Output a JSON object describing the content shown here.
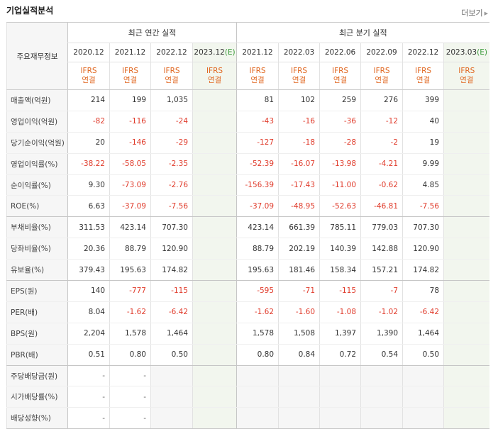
{
  "title": "기업실적분석",
  "more_label": "더보기",
  "row_header": "주요재무정보",
  "annual_group": "최근 연간 실적",
  "quarter_group": "최근 분기 실적",
  "estimate_suffix": "(E)",
  "ifrs": [
    "IFRS",
    "연결"
  ],
  "columns": {
    "annual": [
      {
        "period": "2020.12",
        "estimate": false
      },
      {
        "period": "2021.12",
        "estimate": false
      },
      {
        "period": "2022.12",
        "estimate": false
      },
      {
        "period": "2023.12",
        "estimate": true
      }
    ],
    "quarter": [
      {
        "period": "2021.12",
        "estimate": false
      },
      {
        "period": "2022.03",
        "estimate": false
      },
      {
        "period": "2022.06",
        "estimate": false
      },
      {
        "period": "2022.09",
        "estimate": false
      },
      {
        "period": "2022.12",
        "estimate": false
      },
      {
        "period": "2023.03",
        "estimate": true
      }
    ]
  },
  "rows": [
    {
      "label": "매출액(억원)",
      "annual": [
        "214",
        "199",
        "1,035",
        ""
      ],
      "quarter": [
        "81",
        "102",
        "259",
        "276",
        "399",
        ""
      ]
    },
    {
      "label": "영업이익(억원)",
      "annual": [
        "-82",
        "-116",
        "-24",
        ""
      ],
      "quarter": [
        "-43",
        "-16",
        "-36",
        "-12",
        "40",
        ""
      ]
    },
    {
      "label": "당기순이익(억원)",
      "annual": [
        "20",
        "-146",
        "-29",
        ""
      ],
      "quarter": [
        "-127",
        "-18",
        "-28",
        "-2",
        "19",
        ""
      ]
    },
    {
      "label": "영업이익률(%)",
      "annual": [
        "-38.22",
        "-58.05",
        "-2.35",
        ""
      ],
      "quarter": [
        "-52.39",
        "-16.07",
        "-13.98",
        "-4.21",
        "9.99",
        ""
      ]
    },
    {
      "label": "순이익률(%)",
      "annual": [
        "9.30",
        "-73.09",
        "-2.76",
        ""
      ],
      "quarter": [
        "-156.39",
        "-17.43",
        "-11.00",
        "-0.62",
        "4.85",
        ""
      ]
    },
    {
      "label": "ROE(%)",
      "annual": [
        "6.63",
        "-37.09",
        "-7.56",
        ""
      ],
      "quarter": [
        "-37.09",
        "-48.95",
        "-52.63",
        "-46.81",
        "-7.56",
        ""
      ]
    },
    {
      "label": "부채비율(%)",
      "annual": [
        "311.53",
        "423.14",
        "707.30",
        ""
      ],
      "quarter": [
        "423.14",
        "661.39",
        "785.11",
        "779.03",
        "707.30",
        ""
      ]
    },
    {
      "label": "당좌비율(%)",
      "annual": [
        "20.36",
        "88.79",
        "120.90",
        ""
      ],
      "quarter": [
        "88.79",
        "202.19",
        "140.39",
        "142.88",
        "120.90",
        ""
      ]
    },
    {
      "label": "유보율(%)",
      "annual": [
        "379.43",
        "195.63",
        "174.82",
        ""
      ],
      "quarter": [
        "195.63",
        "181.46",
        "158.34",
        "157.21",
        "174.82",
        ""
      ]
    },
    {
      "label": "EPS(원)",
      "annual": [
        "140",
        "-777",
        "-115",
        ""
      ],
      "quarter": [
        "-595",
        "-71",
        "-115",
        "-7",
        "78",
        ""
      ]
    },
    {
      "label": "PER(배)",
      "annual": [
        "8.04",
        "-1.62",
        "-6.42",
        ""
      ],
      "quarter": [
        "-1.62",
        "-1.60",
        "-1.08",
        "-1.02",
        "-6.42",
        ""
      ]
    },
    {
      "label": "BPS(원)",
      "annual": [
        "2,204",
        "1,578",
        "1,464",
        ""
      ],
      "quarter": [
        "1,578",
        "1,508",
        "1,397",
        "1,390",
        "1,464",
        ""
      ]
    },
    {
      "label": "PBR(배)",
      "annual": [
        "0.51",
        "0.80",
        "0.50",
        ""
      ],
      "quarter": [
        "0.80",
        "0.84",
        "0.72",
        "0.54",
        "0.50",
        ""
      ]
    },
    {
      "label": "주당배당금(원)",
      "annual": [
        "-",
        "-",
        "",
        ""
      ],
      "quarter": [
        "",
        "",
        "",
        "",
        "",
        ""
      ]
    },
    {
      "label": "시가배당률(%)",
      "annual": [
        "-",
        "-",
        "",
        ""
      ],
      "quarter": [
        "",
        "",
        "",
        "",
        "",
        ""
      ]
    },
    {
      "label": "배당성향(%)",
      "annual": [
        "-",
        "-",
        "",
        ""
      ],
      "quarter": [
        "",
        "",
        "",
        "",
        "",
        ""
      ]
    }
  ]
}
